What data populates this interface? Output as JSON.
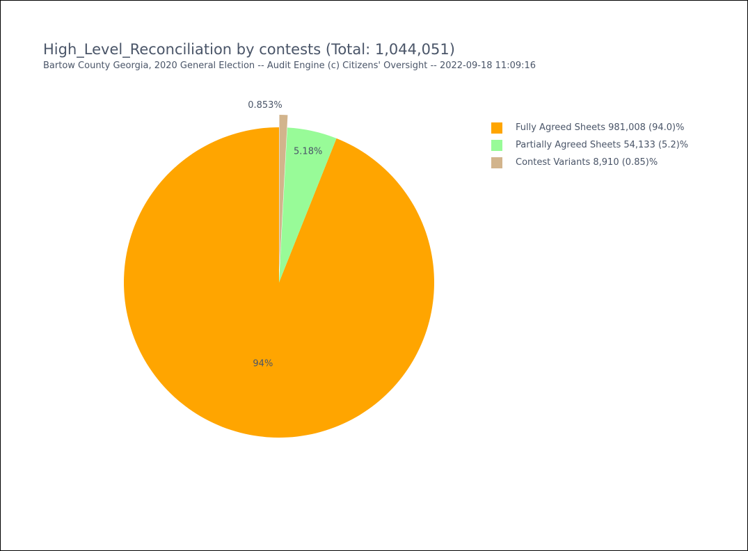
{
  "chart_data": {
    "type": "pie",
    "title": "High_Level_Reconciliation by contests (Total: 1,044,051)",
    "subtitle": "Bartow County Georgia, 2020 General Election -- Audit Engine (c) Citizens' Oversight -- 2022-09-18 11:09:16",
    "slices": [
      {
        "name": "Fully Agreed Sheets 981,008 (94.0)%",
        "value": 981008,
        "label": "94%",
        "color": "#ffa500",
        "pulled": false
      },
      {
        "name": "Partially Agreed Sheets 54,133 (5.2)%",
        "value": 54133,
        "label": "5.18%",
        "color": "#98fb98",
        "pulled": false
      },
      {
        "name": "Contest Variants 8,910 (0.85)%",
        "value": 8910,
        "label": "0.853%",
        "color": "#d2b48c",
        "pulled": true
      }
    ],
    "direction": "counterclockwise",
    "start": "top",
    "legend_position": "top-right"
  }
}
